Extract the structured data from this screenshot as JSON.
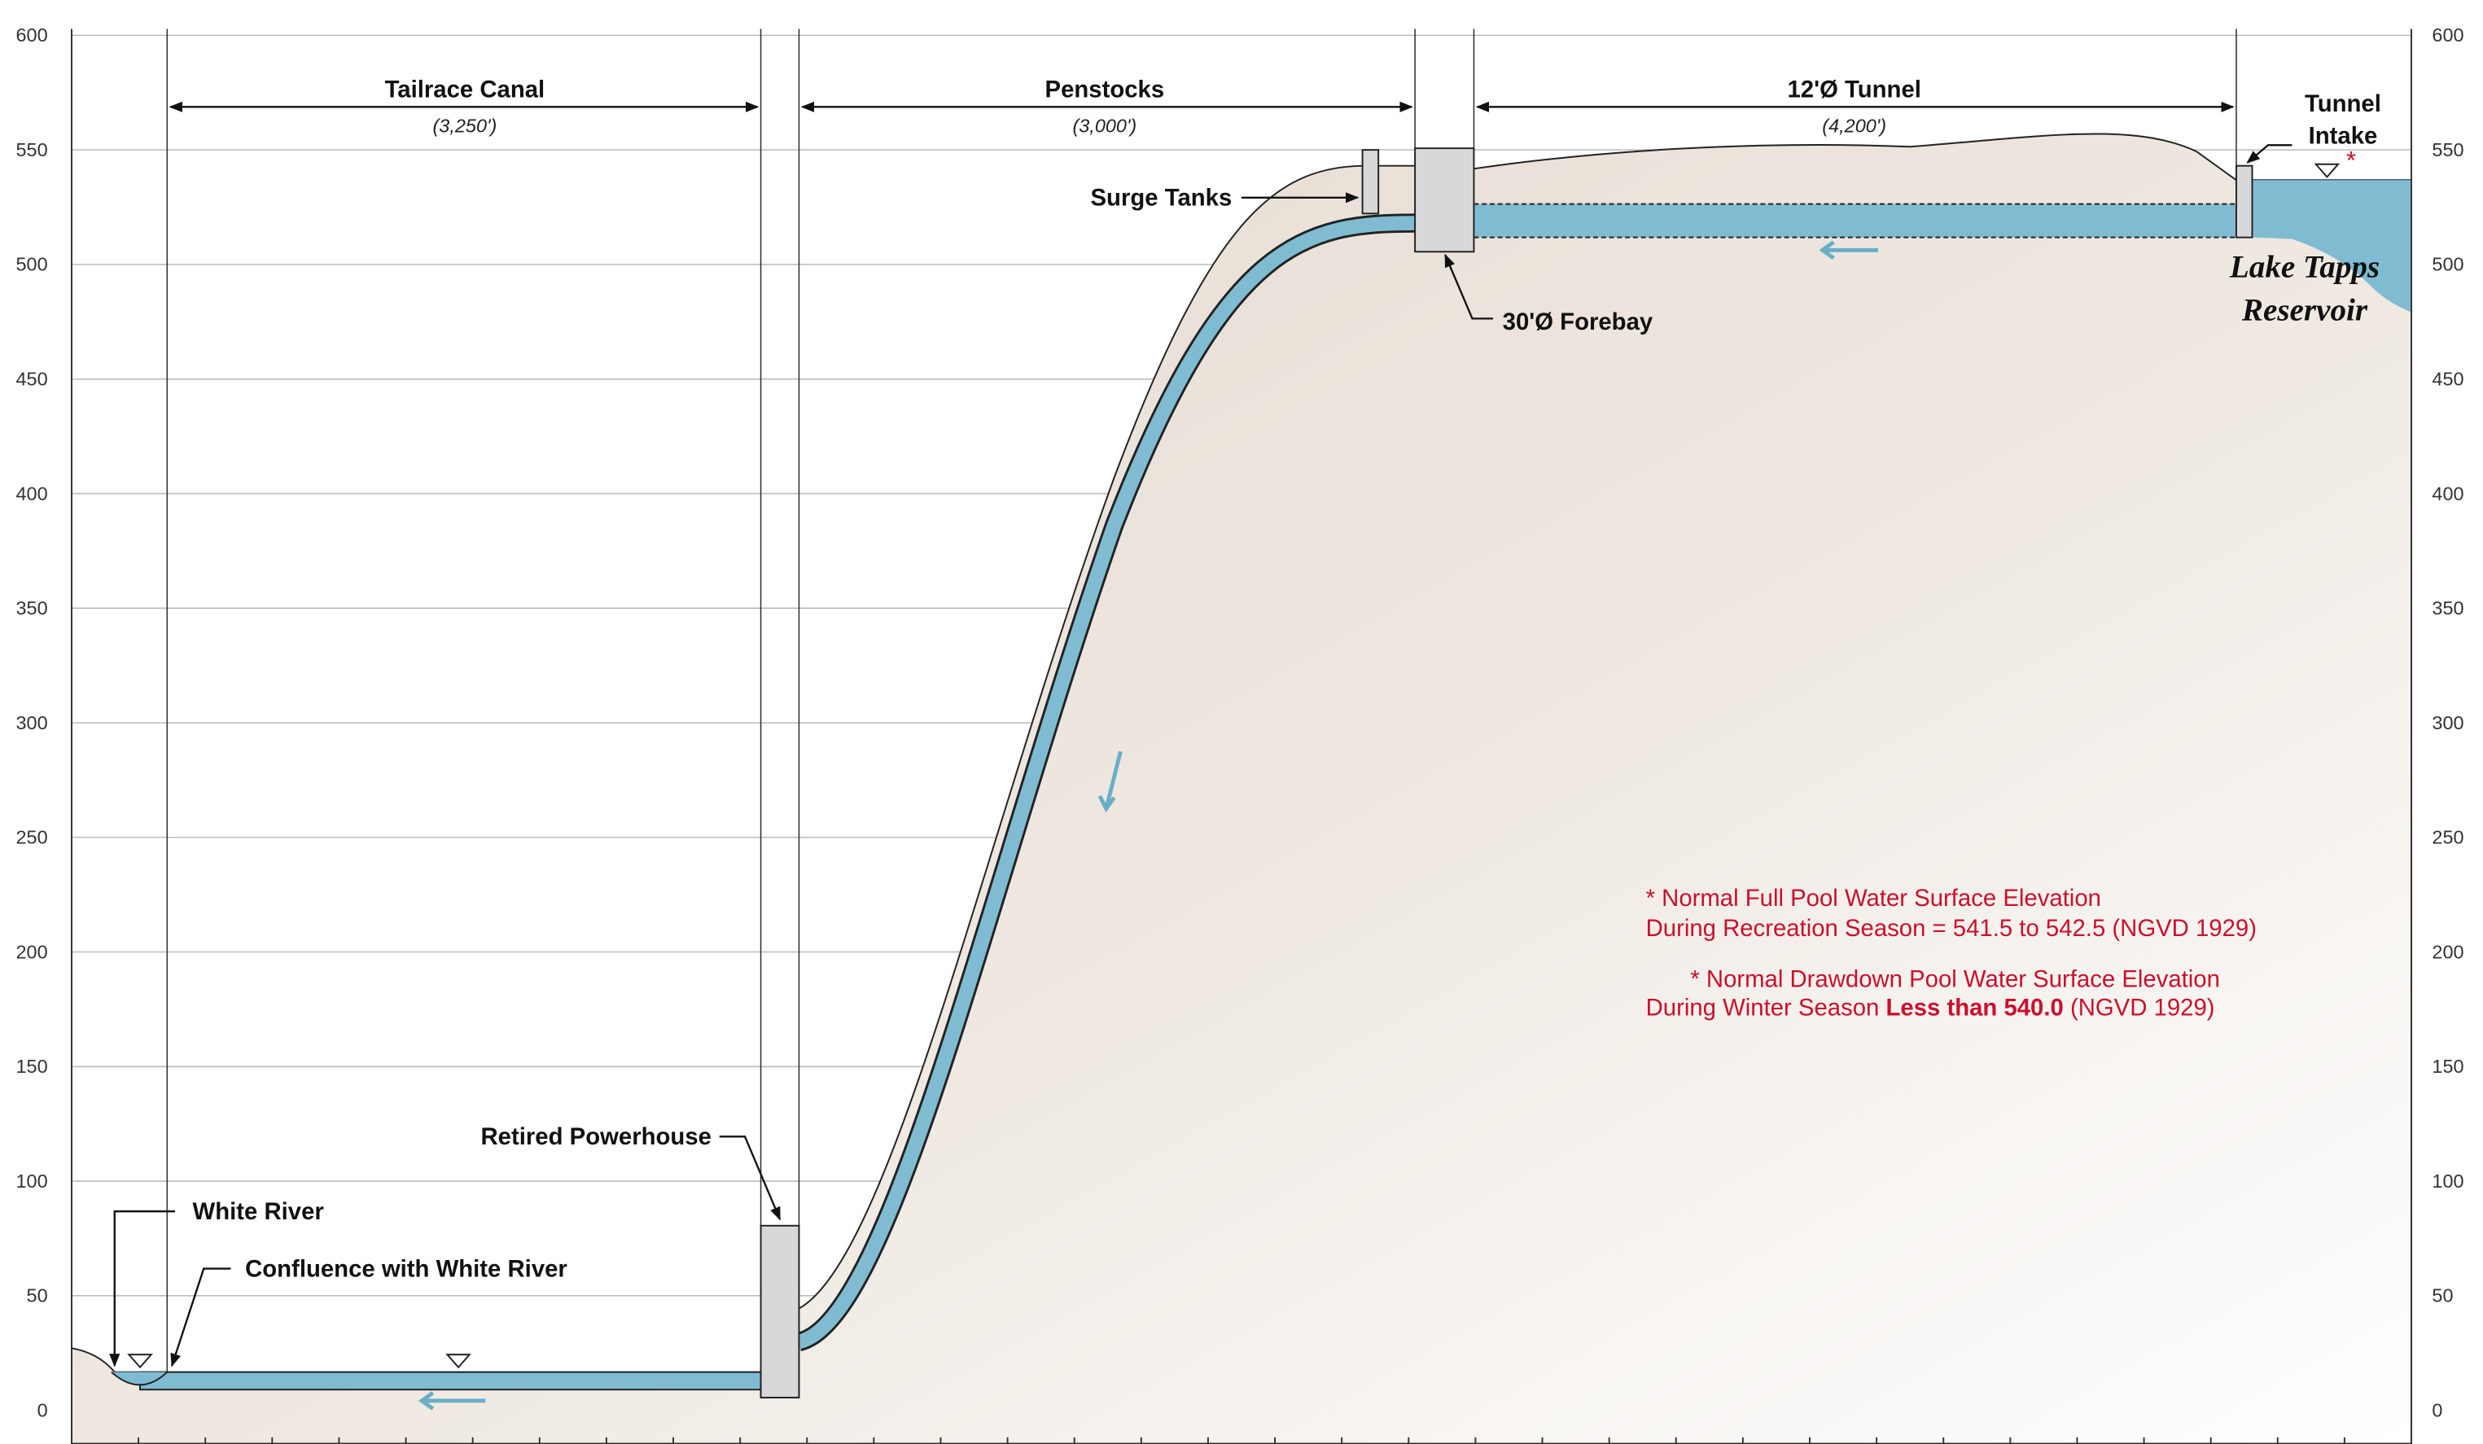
{
  "elevation_ticks": [
    0,
    50,
    100,
    150,
    200,
    250,
    300,
    350,
    400,
    450,
    500,
    550,
    600
  ],
  "sections": [
    {
      "label": "Tailrace Canal",
      "length": "(3,250')"
    },
    {
      "label": "Penstocks",
      "length": "(3,000')"
    },
    {
      "label": "12'Ø Tunnel",
      "length": "(4,200')"
    }
  ],
  "callouts": {
    "tunnel_intake_1": "Tunnel",
    "tunnel_intake_2": "Intake",
    "surge_tanks": "Surge Tanks",
    "forebay": "30'Ø Forebay",
    "retired_powerhouse": "Retired Powerhouse",
    "white_river": "White River",
    "confluence": "Confluence with White River",
    "asterisk": "*"
  },
  "reservoir": {
    "line1": "Lake Tapps",
    "line2": "Reservoir"
  },
  "notes": {
    "full_pool_1": "*  Normal Full Pool Water Surface Elevation",
    "full_pool_2": "During Recreation Season = 541.5 to 542.5 (NGVD 1929)",
    "drawdown_1": "* Normal Drawdown Pool Water Surface Elevation",
    "drawdown_2a": "During Winter Season ",
    "drawdown_2b": "Less than 540.0",
    "drawdown_2c": " (NGVD 1929)"
  }
}
